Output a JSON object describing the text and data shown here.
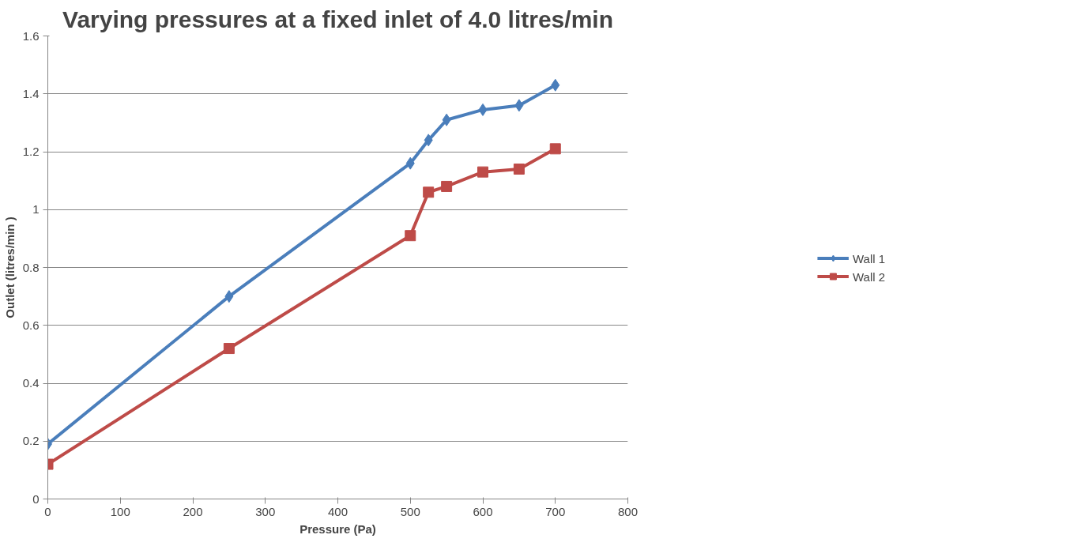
{
  "chart_data": {
    "type": "line",
    "title": "Varying pressures at a fixed inlet of 4.0 litres/min",
    "xlabel": "Pressure (Pa)",
    "ylabel": "Outlet (litres/min )",
    "x": [
      0,
      250,
      500,
      525,
      550,
      600,
      650,
      700
    ],
    "series": [
      {
        "name": "Wall 1",
        "color": "#4a7ebb",
        "marker": "diamond",
        "values": [
          0.19,
          0.7,
          1.16,
          1.24,
          1.31,
          1.345,
          1.36,
          1.43
        ]
      },
      {
        "name": "Wall 2",
        "color": "#be4b48",
        "marker": "square",
        "values": [
          0.12,
          0.52,
          0.91,
          1.06,
          1.08,
          1.13,
          1.14,
          1.21
        ]
      }
    ],
    "xlim": [
      0,
      800
    ],
    "xticks": [
      0,
      100,
      200,
      300,
      400,
      500,
      600,
      700,
      800
    ],
    "ylim": [
      0,
      1.6
    ],
    "yticks": [
      0,
      0.2,
      0.4,
      0.6,
      0.8,
      1,
      1.2,
      1.4,
      1.6
    ],
    "grid": "y",
    "legend": "right",
    "line_style": "solid"
  }
}
